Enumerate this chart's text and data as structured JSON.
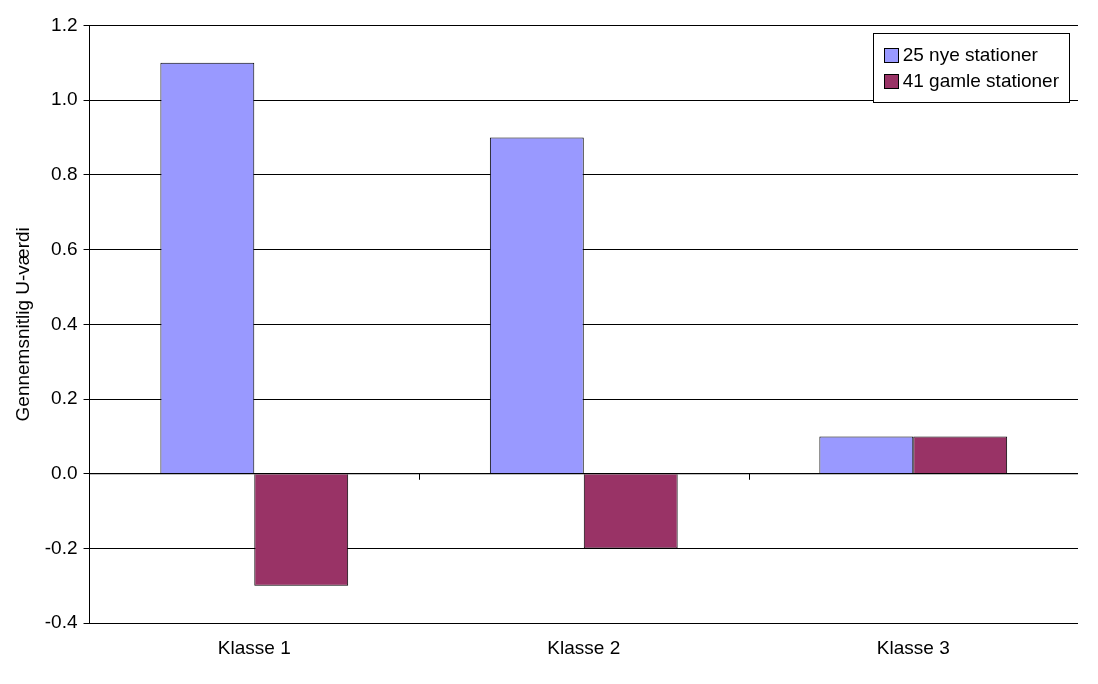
{
  "chart_data": {
    "type": "bar",
    "ylabel": "Gennemsnitlig U-værdi",
    "categories": [
      "Klasse 1",
      "Klasse 2",
      "Klasse 3"
    ],
    "series": [
      {
        "name": "25 nye stationer",
        "color": "#9999ff",
        "values": [
          1.1,
          0.9,
          0.1
        ]
      },
      {
        "name": "41 gamle stationer",
        "color": "#993366",
        "values": [
          -0.3,
          -0.2,
          0.1
        ]
      }
    ],
    "ylim": [
      -0.4,
      1.2
    ],
    "yticks": [
      {
        "value": -0.4,
        "label": "-0.4"
      },
      {
        "value": -0.2,
        "label": "-0.2"
      },
      {
        "value": 0,
        "label": "0.0"
      },
      {
        "value": 0.2,
        "label": "0.2"
      },
      {
        "value": 0.4,
        "label": "0.4"
      },
      {
        "value": 0.6,
        "label": "0.6"
      },
      {
        "value": 0.8,
        "label": "0.8"
      },
      {
        "value": 1,
        "label": "1.0"
      },
      {
        "value": 1.2,
        "label": "1.2"
      }
    ],
    "grid": "y",
    "legend": "top right"
  }
}
